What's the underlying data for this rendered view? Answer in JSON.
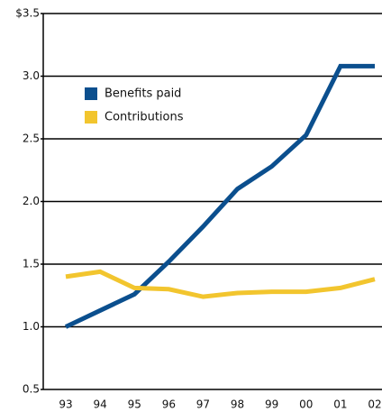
{
  "chart_data": {
    "type": "line",
    "categories": [
      "93",
      "94",
      "95",
      "96",
      "97",
      "98",
      "99",
      "00",
      "01",
      "02"
    ],
    "series": [
      {
        "name": "Benefits paid",
        "color": "#0b4f8e",
        "values": [
          1.0,
          1.13,
          1.26,
          1.52,
          1.8,
          2.1,
          2.28,
          2.53,
          3.08,
          3.08
        ]
      },
      {
        "name": "Contributions",
        "color": "#f2c52e",
        "values": [
          1.4,
          1.44,
          1.31,
          1.3,
          1.24,
          1.27,
          1.28,
          1.28,
          1.31,
          1.38
        ]
      }
    ],
    "ylim": [
      0.5,
      3.5
    ],
    "yticks": [
      {
        "value": 0.5,
        "label": "0.5"
      },
      {
        "value": 1,
        "label": "1.0"
      },
      1.5,
      {
        "value": 2,
        "label": "2.0"
      },
      2.5,
      {
        "value": 3,
        "label": "3.0"
      },
      {
        "value": 3.5,
        "label": "$3.5"
      }
    ],
    "grid": true
  }
}
